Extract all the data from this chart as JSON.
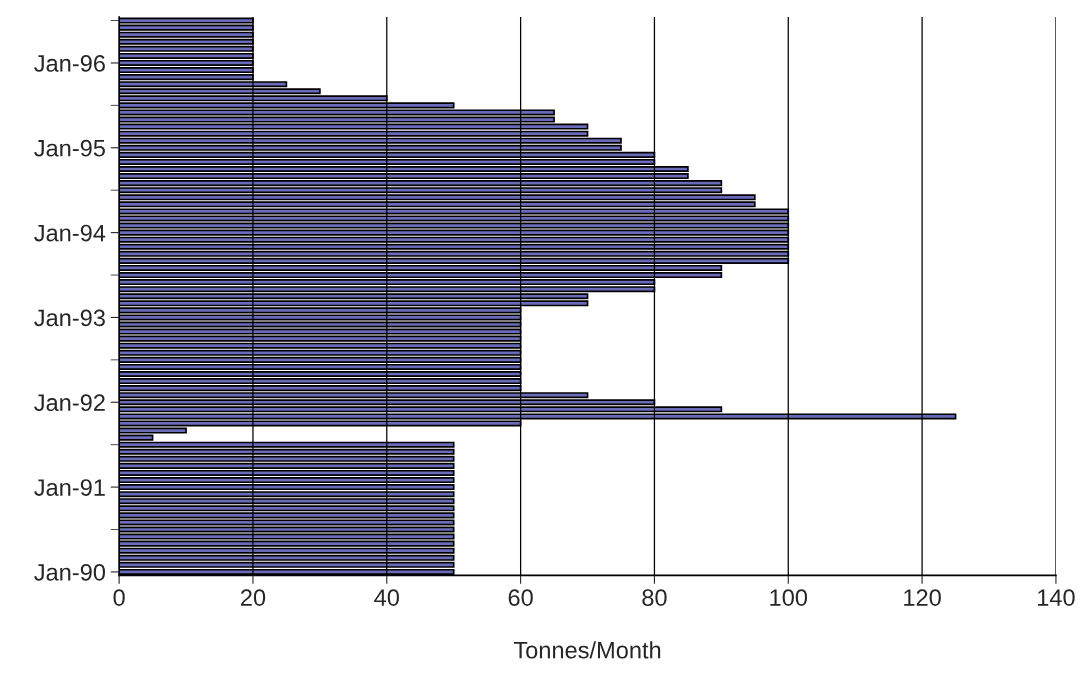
{
  "chart_data": {
    "type": "bar",
    "orientation": "horizontal",
    "xlabel": "Tonnes/Month",
    "categories": [
      null,
      null,
      null,
      null,
      null,
      null,
      "Jan-96",
      null,
      null,
      null,
      null,
      null,
      null,
      null,
      null,
      null,
      null,
      null,
      "Jan-95",
      null,
      null,
      null,
      null,
      null,
      null,
      null,
      null,
      null,
      null,
      null,
      "Jan-94",
      null,
      null,
      null,
      null,
      null,
      null,
      null,
      null,
      null,
      null,
      null,
      "Jan-93",
      null,
      null,
      null,
      null,
      null,
      null,
      null,
      null,
      null,
      null,
      null,
      "Jan-92",
      null,
      null,
      null,
      null,
      null,
      null,
      null,
      null,
      null,
      null,
      null,
      "Jan-91",
      null,
      null,
      null,
      null,
      null,
      null,
      null,
      null,
      null,
      null,
      null,
      "Jan-90"
    ],
    "values": [
      20,
      20,
      20,
      20,
      20,
      20,
      20,
      20,
      20,
      25,
      30,
      40,
      50,
      65,
      65,
      70,
      70,
      75,
      75,
      80,
      80,
      85,
      85,
      90,
      90,
      95,
      95,
      100,
      100,
      100,
      100,
      100,
      100,
      100,
      100,
      90,
      90,
      80,
      80,
      70,
      70,
      60,
      60,
      60,
      60,
      60,
      60,
      60,
      60,
      60,
      60,
      60,
      60,
      70,
      80,
      90,
      125,
      60,
      10,
      5,
      50,
      50,
      50,
      50,
      50,
      50,
      50,
      50,
      50,
      50,
      50,
      50,
      50,
      50,
      50,
      50,
      50,
      50,
      50
    ],
    "color": "#6a6ab8",
    "xlim": [
      0,
      140
    ],
    "xticks": [
      0,
      20,
      40,
      60,
      80,
      100,
      120,
      140
    ],
    "grid": "x"
  }
}
